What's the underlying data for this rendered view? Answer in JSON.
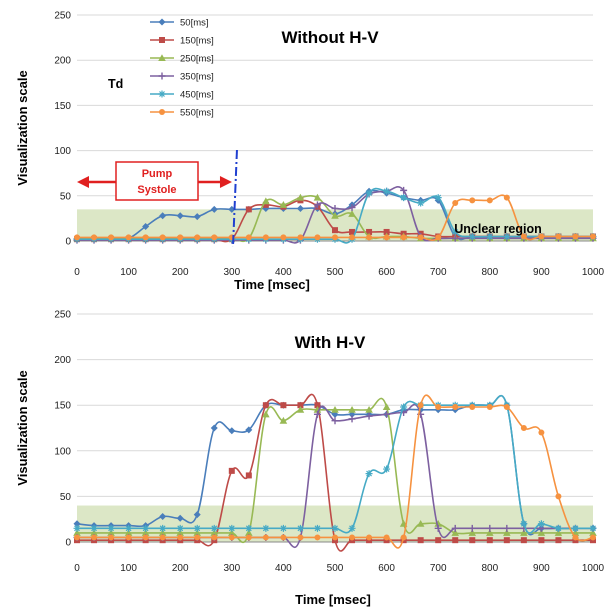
{
  "chart_data": [
    {
      "type": "line",
      "title": "Without H-V",
      "xlabel": "Time [msec]",
      "ylabel": "Visualization  scale",
      "xlim": [
        0,
        1000
      ],
      "ylim": [
        0,
        250
      ],
      "xticks": [
        0,
        100,
        200,
        300,
        400,
        500,
        600,
        700,
        800,
        900,
        1000
      ],
      "yticks": [
        0,
        50,
        100,
        150,
        200,
        250
      ],
      "unclear_band": [
        0,
        35
      ],
      "annotations": {
        "td": "Td",
        "pump": [
          "Pump",
          "Systole"
        ],
        "pump_range": [
          0,
          310
        ],
        "unclear": "Unclear region"
      },
      "x": [
        0,
        33,
        66,
        100,
        133,
        166,
        200,
        233,
        266,
        300,
        333,
        366,
        400,
        433,
        466,
        500,
        533,
        566,
        600,
        633,
        666,
        700,
        733,
        766,
        800,
        833,
        866,
        900,
        933,
        966,
        1000
      ],
      "series": [
        {
          "name": "50[ms]",
          "color": "#4a7ebb",
          "values": [
            3,
            3,
            3,
            3,
            16,
            28,
            28,
            27,
            35,
            35,
            35,
            36,
            36,
            36,
            36,
            30,
            40,
            55,
            53,
            48,
            45,
            45,
            5,
            5,
            5,
            5,
            5,
            5,
            5,
            5,
            5
          ]
        },
        {
          "name": "150[ms]",
          "color": "#be4b48",
          "values": [
            2,
            2,
            2,
            2,
            2,
            2,
            2,
            2,
            2,
            2,
            35,
            40,
            38,
            45,
            38,
            12,
            10,
            10,
            10,
            8,
            8,
            5,
            5,
            5,
            5,
            5,
            5,
            5,
            5,
            5,
            5
          ]
        },
        {
          "name": "250[ms]",
          "color": "#98b954",
          "values": [
            3,
            3,
            3,
            3,
            3,
            3,
            3,
            3,
            3,
            3,
            3,
            44,
            40,
            48,
            48,
            28,
            30,
            5,
            5,
            5,
            3,
            3,
            3,
            3,
            3,
            3,
            3,
            3,
            3,
            3,
            3
          ]
        },
        {
          "name": "350[ms]",
          "color": "#7d60a0",
          "values": [
            1,
            1,
            1,
            1,
            1,
            1,
            1,
            1,
            1,
            1,
            1,
            1,
            1,
            1,
            40,
            36,
            37,
            52,
            55,
            56,
            5,
            3,
            3,
            3,
            3,
            3,
            3,
            3,
            3,
            3,
            3
          ]
        },
        {
          "name": "450[ms]",
          "color": "#46aac5",
          "values": [
            2,
            2,
            2,
            2,
            2,
            2,
            2,
            2,
            2,
            2,
            2,
            2,
            2,
            2,
            2,
            2,
            2,
            53,
            55,
            48,
            42,
            48,
            10,
            5,
            5,
            5,
            5,
            5,
            5,
            5,
            5
          ]
        },
        {
          "name": "550[ms]",
          "color": "#f69240",
          "values": [
            4,
            4,
            4,
            4,
            4,
            4,
            4,
            4,
            4,
            4,
            4,
            4,
            4,
            4,
            4,
            4,
            4,
            4,
            4,
            4,
            4,
            4,
            42,
            45,
            45,
            48,
            5,
            5,
            5,
            5,
            5
          ]
        }
      ]
    },
    {
      "type": "line",
      "title": "With H-V",
      "xlabel": "Time [msec]",
      "ylabel": "Visualization  scale",
      "xlim": [
        0,
        1000
      ],
      "ylim": [
        0,
        250
      ],
      "xticks": [
        0,
        100,
        200,
        300,
        400,
        500,
        600,
        700,
        800,
        900,
        1000
      ],
      "yticks": [
        0,
        50,
        100,
        150,
        200,
        250
      ],
      "unclear_band": [
        0,
        40
      ],
      "x": [
        0,
        33,
        66,
        100,
        133,
        166,
        200,
        233,
        266,
        300,
        333,
        366,
        400,
        433,
        466,
        500,
        533,
        566,
        600,
        633,
        666,
        700,
        733,
        766,
        800,
        833,
        866,
        900,
        933,
        966,
        1000
      ],
      "series": [
        {
          "name": "50[ms]",
          "color": "#4a7ebb",
          "values": [
            20,
            18,
            18,
            18,
            18,
            28,
            26,
            30,
            125,
            122,
            123,
            150,
            150,
            150,
            150,
            140,
            140,
            140,
            140,
            145,
            145,
            145,
            145,
            150,
            150,
            150,
            20,
            15,
            15,
            15,
            15
          ]
        },
        {
          "name": "150[ms]",
          "color": "#be4b48",
          "values": [
            2,
            2,
            2,
            2,
            2,
            2,
            2,
            2,
            2,
            78,
            73,
            150,
            150,
            150,
            150,
            2,
            2,
            2,
            2,
            2,
            2,
            2,
            2,
            2,
            2,
            2,
            2,
            2,
            2,
            2,
            2
          ]
        },
        {
          "name": "250[ms]",
          "color": "#98b954",
          "values": [
            10,
            10,
            10,
            10,
            10,
            10,
            10,
            10,
            10,
            10,
            10,
            140,
            133,
            145,
            145,
            145,
            145,
            145,
            148,
            20,
            20,
            20,
            10,
            10,
            10,
            10,
            10,
            10,
            10,
            10,
            10
          ]
        },
        {
          "name": "350[ms]",
          "color": "#7d60a0",
          "values": [
            5,
            5,
            5,
            5,
            5,
            5,
            5,
            5,
            5,
            5,
            5,
            5,
            5,
            5,
            140,
            133,
            135,
            138,
            140,
            142,
            140,
            15,
            15,
            15,
            15,
            15,
            15,
            15,
            15,
            15,
            15
          ]
        },
        {
          "name": "450[ms]",
          "color": "#46aac5",
          "values": [
            15,
            15,
            15,
            15,
            15,
            15,
            15,
            15,
            15,
            15,
            15,
            15,
            15,
            15,
            15,
            15,
            15,
            75,
            80,
            148,
            150,
            150,
            150,
            150,
            150,
            150,
            20,
            20,
            15,
            15,
            15
          ]
        },
        {
          "name": "550[ms]",
          "color": "#f69240",
          "values": [
            5,
            5,
            5,
            5,
            5,
            5,
            5,
            5,
            5,
            5,
            5,
            5,
            5,
            5,
            5,
            5,
            5,
            5,
            5,
            5,
            150,
            148,
            148,
            148,
            148,
            148,
            125,
            120,
            50,
            5,
            5
          ]
        }
      ]
    }
  ]
}
